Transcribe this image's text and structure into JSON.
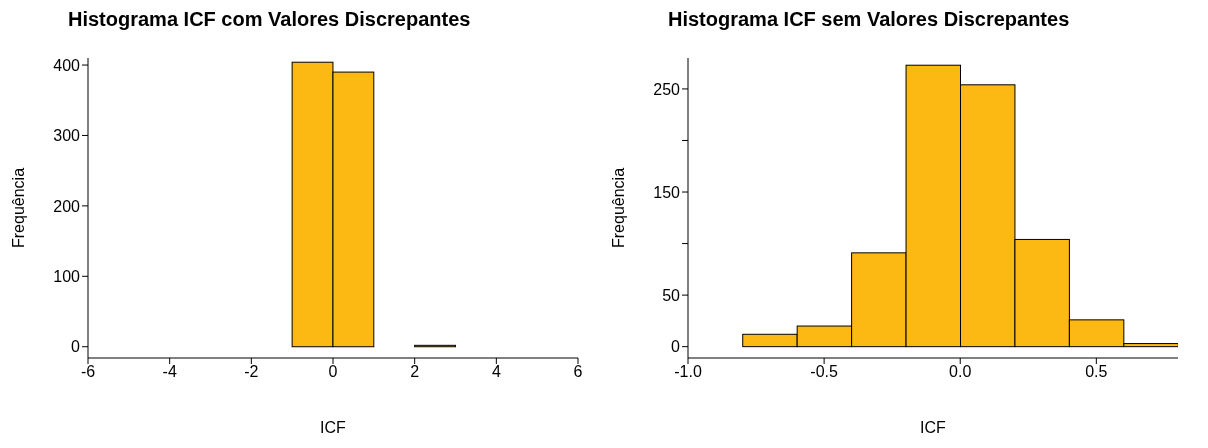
{
  "chart_data": [
    {
      "type": "histogram",
      "title": "Histograma ICF com Valores Discrepantes",
      "xlabel": "ICF",
      "ylabel": "Frequência",
      "color": "#fdb913",
      "bins": [
        -6,
        -5,
        -4,
        -3,
        -2,
        -1,
        0,
        1,
        2,
        3,
        4,
        5,
        6
      ],
      "values": [
        0,
        0,
        0,
        0,
        0,
        404,
        390,
        0,
        2,
        0,
        0,
        0
      ],
      "xlim": [
        -6,
        6
      ],
      "xticks": [
        -6,
        -4,
        -2,
        0,
        2,
        4,
        6
      ],
      "ylim": [
        -16,
        410
      ],
      "yticks": [
        0,
        100,
        200,
        300,
        400
      ]
    },
    {
      "type": "histogram",
      "title": "Histograma ICF sem Valores Discrepantes",
      "xlabel": "ICF",
      "ylabel": "Frequência",
      "color": "#fdb913",
      "bins": [
        -1.0,
        -0.8,
        -0.6,
        -0.4,
        -0.2,
        0,
        0.2,
        0.4,
        0.6,
        0.8
      ],
      "values": [
        0,
        12,
        20,
        91,
        273,
        254,
        104,
        26,
        3
      ],
      "xlim": [
        -1.0,
        0.8
      ],
      "xticks": [
        {
          "value": -1,
          "label": "-1.0"
        },
        -0.5,
        {
          "value": 0,
          "label": "0.0"
        },
        0.5
      ],
      "ylim": [
        -11,
        280
      ],
      "yticks": [
        0,
        50,
        {
          "value": 100,
          "label": null
        },
        150,
        {
          "value": 200,
          "label": null
        },
        250
      ]
    }
  ]
}
